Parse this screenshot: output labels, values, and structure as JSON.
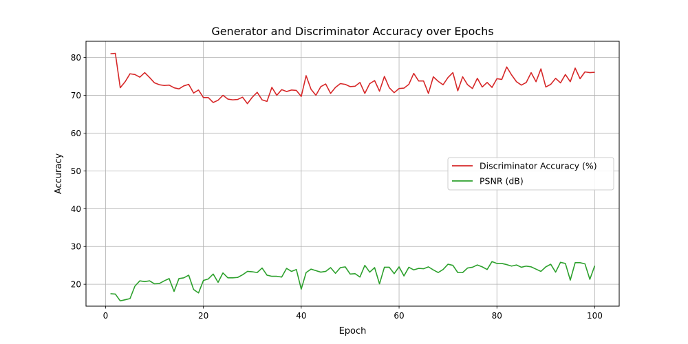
{
  "chart_data": {
    "type": "line",
    "title": "Generator and Discriminator Accuracy over Epochs",
    "xlabel": "Epoch",
    "ylabel": "Accuracy",
    "xlim": [
      -4,
      105
    ],
    "ylim": [
      14.2,
      84.3
    ],
    "x_ticks": [
      0,
      20,
      40,
      60,
      80,
      100
    ],
    "y_ticks": [
      20,
      30,
      40,
      50,
      60,
      70,
      80
    ],
    "grid": true,
    "legend_position": "center-right",
    "x": [
      1,
      2,
      3,
      4,
      5,
      6,
      7,
      8,
      9,
      10,
      11,
      12,
      13,
      14,
      15,
      16,
      17,
      18,
      19,
      20,
      21,
      22,
      23,
      24,
      25,
      26,
      27,
      28,
      29,
      30,
      31,
      32,
      33,
      34,
      35,
      36,
      37,
      38,
      39,
      40,
      41,
      42,
      43,
      44,
      45,
      46,
      47,
      48,
      49,
      50,
      51,
      52,
      53,
      54,
      55,
      56,
      57,
      58,
      59,
      60,
      61,
      62,
      63,
      64,
      65,
      66,
      67,
      68,
      69,
      70,
      71,
      72,
      73,
      74,
      75,
      76,
      77,
      78,
      79,
      80,
      81,
      82,
      83,
      84,
      85,
      86,
      87,
      88,
      89,
      90,
      91,
      92,
      93,
      94,
      95,
      96,
      97,
      98,
      99,
      100
    ],
    "series": [
      {
        "name": "Discriminator Accuracy (%)",
        "color": "#d62728",
        "values": [
          81.0,
          81.1,
          72.0,
          73.6,
          75.7,
          75.5,
          74.8,
          76.0,
          74.7,
          73.3,
          72.8,
          72.6,
          72.7,
          72.0,
          71.7,
          72.5,
          72.9,
          70.6,
          71.4,
          69.4,
          69.4,
          68.1,
          68.7,
          70.0,
          69.0,
          68.8,
          68.9,
          69.5,
          67.8,
          69.5,
          70.8,
          68.8,
          68.4,
          72.1,
          70.0,
          71.5,
          71.0,
          71.4,
          71.3,
          69.7,
          75.2,
          71.6,
          70.0,
          72.3,
          73.0,
          70.5,
          72.1,
          73.1,
          72.9,
          72.3,
          72.4,
          73.4,
          70.5,
          73.1,
          73.9,
          71.1,
          75.0,
          72.0,
          70.7,
          71.8,
          71.9,
          72.9,
          75.8,
          73.8,
          73.8,
          70.5,
          74.9,
          73.7,
          72.8,
          74.7,
          76.0,
          71.2,
          74.9,
          72.8,
          71.8,
          74.5,
          72.2,
          73.4,
          72.1,
          74.4,
          74.2,
          77.5,
          75.4,
          73.6,
          72.7,
          73.4,
          76.0,
          73.6,
          77.0,
          72.2,
          72.9,
          74.5,
          73.3,
          75.5,
          73.6,
          77.2,
          74.4,
          76.2,
          76.0,
          76.1
        ]
      },
      {
        "name": "PSNR (dB)",
        "color": "#2ca02c",
        "values": [
          17.5,
          17.4,
          15.6,
          15.9,
          16.2,
          19.5,
          20.9,
          20.7,
          20.9,
          20.1,
          20.2,
          20.9,
          21.5,
          18.1,
          21.5,
          21.7,
          22.4,
          18.6,
          17.7,
          21.0,
          21.4,
          22.7,
          20.5,
          23.0,
          21.7,
          21.7,
          21.8,
          22.5,
          23.4,
          23.3,
          23.1,
          24.3,
          22.4,
          22.1,
          22.1,
          21.9,
          24.2,
          23.4,
          23.9,
          18.7,
          23.1,
          24.0,
          23.6,
          23.2,
          23.4,
          24.4,
          22.9,
          24.4,
          24.6,
          22.7,
          22.8,
          21.9,
          25.0,
          23.2,
          24.4,
          20.1,
          24.5,
          24.5,
          22.8,
          24.6,
          22.2,
          24.5,
          23.8,
          24.2,
          24.1,
          24.6,
          23.8,
          23.1,
          23.9,
          25.3,
          25.0,
          23.1,
          23.1,
          24.3,
          24.5,
          25.1,
          24.6,
          23.9,
          26.0,
          25.5,
          25.5,
          25.2,
          24.8,
          25.1,
          24.5,
          24.8,
          24.6,
          24.0,
          23.4,
          24.6,
          25.3,
          23.2,
          25.8,
          25.5,
          21.1,
          25.7,
          25.7,
          25.4,
          21.3,
          24.9
        ]
      }
    ]
  }
}
